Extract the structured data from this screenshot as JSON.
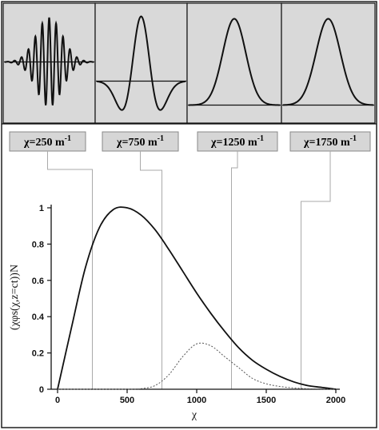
{
  "panels": [
    {
      "label": "χ=250 m",
      "exponent": "-1",
      "k": 250,
      "shape": "wavepacket"
    },
    {
      "label": "χ=750 m",
      "exponent": "-1",
      "k": 750,
      "shape": "mexican-hat"
    },
    {
      "label": "χ=1250 m",
      "exponent": "-1",
      "k": 1250,
      "shape": "gaussian-small-dip"
    },
    {
      "label": "χ=1750 m",
      "exponent": "-1",
      "k": 1750,
      "shape": "gaussian"
    }
  ],
  "chart_data": {
    "type": "line",
    "xlabel": "χ",
    "ylabel": "(χφs(χ,z=ct))N",
    "xlim": [
      0,
      2000
    ],
    "ylim": [
      0,
      1
    ],
    "xticks": [
      "0",
      "500",
      "1000",
      "1500",
      "2000"
    ],
    "yticks": [
      "0",
      "0.2",
      "0.4",
      "0.6",
      "0.8",
      "1"
    ],
    "x": [
      0,
      100,
      200,
      300,
      400,
      500,
      600,
      700,
      800,
      900,
      1000,
      1100,
      1200,
      1300,
      1400,
      1500,
      1600,
      1700,
      1800,
      1900,
      2000
    ],
    "series": [
      {
        "style": "solid",
        "values": [
          0.0,
          0.34,
          0.67,
          0.89,
          0.99,
          1.0,
          0.96,
          0.88,
          0.77,
          0.65,
          0.53,
          0.42,
          0.32,
          0.23,
          0.16,
          0.11,
          0.07,
          0.04,
          0.02,
          0.01,
          0.0
        ]
      },
      {
        "style": "dotted",
        "values": [
          0.0,
          0.0,
          0.0,
          0.0,
          0.0,
          0.0,
          0.003,
          0.02,
          0.08,
          0.18,
          0.25,
          0.24,
          0.18,
          0.12,
          0.06,
          0.03,
          0.015,
          0.007,
          0.003,
          0.001,
          0.0
        ]
      }
    ],
    "grid": false,
    "legend": "none"
  }
}
